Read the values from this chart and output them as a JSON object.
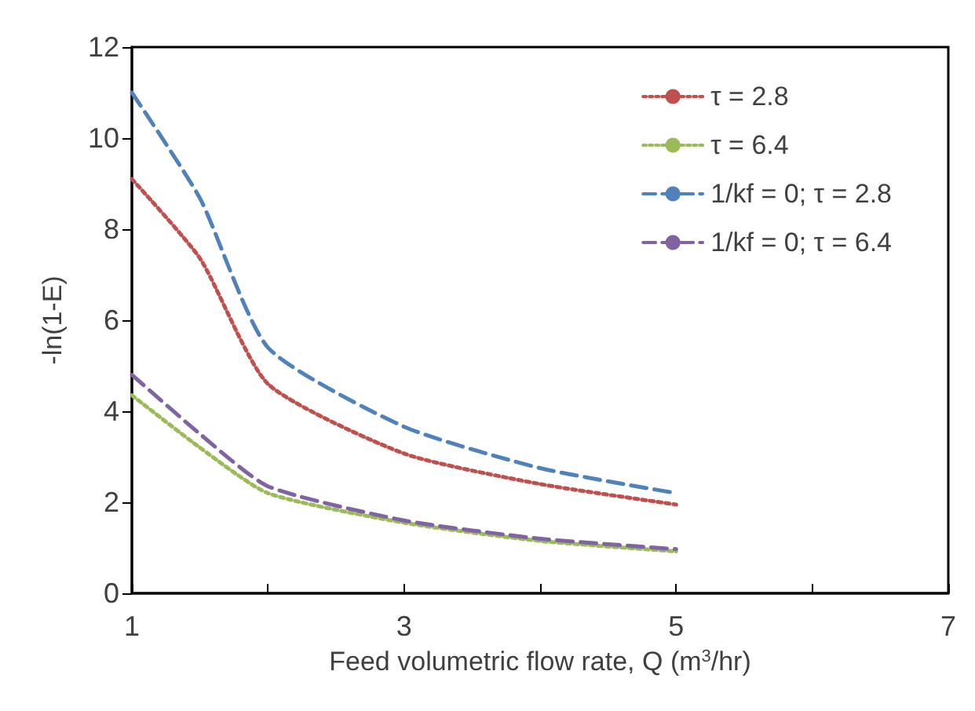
{
  "chart_data": {
    "type": "line",
    "xlabel": "Feed volumetric flow rate, Q (m$^{3}$/hr)",
    "ylabel": "-ln(1-E)",
    "x": [
      1,
      1.5,
      2,
      3,
      4,
      5
    ],
    "series": [
      {
        "name": "τ = 2.8",
        "color": "#c0504d",
        "line_style": "dotted",
        "values": [
          9.1,
          7.36,
          4.6,
          3.07,
          2.4,
          1.95
        ]
      },
      {
        "name": "τ = 6.4",
        "color": "#9bbb59",
        "line_style": "dotted",
        "values": [
          4.35,
          3.2,
          2.2,
          1.55,
          1.15,
          0.92
        ]
      },
      {
        "name": "1/kf = 0; τ = 2.8",
        "color": "#4f81bd",
        "line_style": "dashed",
        "values": [
          11.0,
          8.68,
          5.4,
          3.66,
          2.75,
          2.2
        ]
      },
      {
        "name": "1/kf = 0; τ = 6.4",
        "color": "#8064a2",
        "line_style": "dashed",
        "values": [
          4.8,
          3.5,
          2.35,
          1.6,
          1.2,
          0.97
        ]
      }
    ],
    "xlim": [
      1,
      7
    ],
    "xticks": [
      1,
      {
        "value": 2,
        "label": null
      },
      3,
      {
        "value": 4,
        "label": null
      },
      5,
      {
        "value": 6,
        "label": null
      },
      7
    ],
    "ylim": [
      0,
      12
    ],
    "yticks": [
      0,
      2,
      4,
      6,
      8,
      10,
      12
    ],
    "grid": false,
    "legend": "top right",
    "marker": "none"
  }
}
